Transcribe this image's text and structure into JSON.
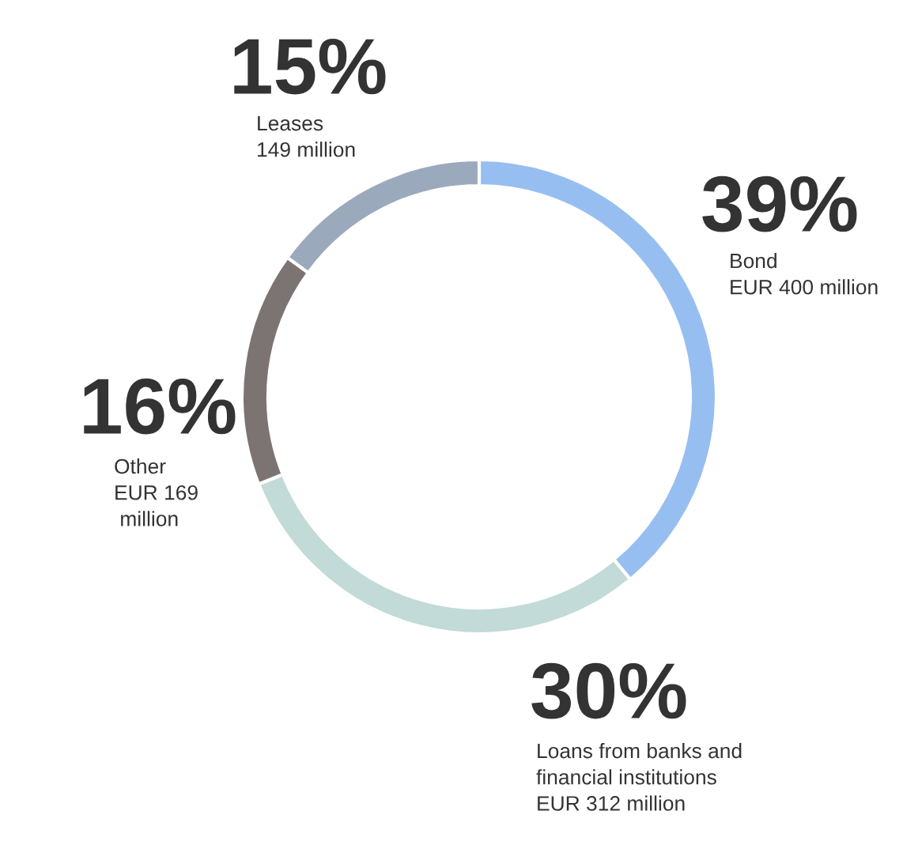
{
  "chart_data": {
    "type": "donut",
    "categories": [
      "Bond\nEUR 400 million",
      "Loans from banks and\nfinancial institutions\nEUR 312 million",
      "Other\nEUR 169\n million",
      "Leases\n149 million"
    ],
    "values": [
      39,
      30,
      16,
      15
    ],
    "value_labels": [
      "39%",
      "30%",
      "16%",
      "15%"
    ],
    "colors": [
      "#97bef0",
      "#c2dad8",
      "#7b7473",
      "#9ba9bd"
    ],
    "legend": false
  }
}
